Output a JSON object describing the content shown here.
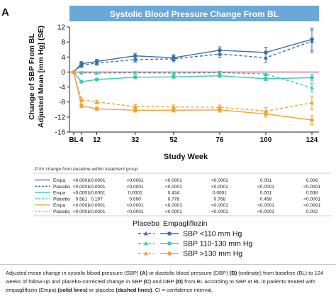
{
  "panel_label": "A",
  "chart_data": {
    "type": "line",
    "title": "Systolic Blood Pressure Change From BL",
    "xlabel": "Study Week",
    "ylabel_line1": "Change of SBP From BL",
    "ylabel_line2": "Adjusted Mean [mm Hg] (SE)",
    "categories": [
      "BL",
      "4",
      "12",
      "32",
      "52",
      "76",
      "100",
      "124"
    ],
    "x": [
      0,
      4,
      12,
      32,
      52,
      76,
      100,
      124
    ],
    "ylim": [
      -16,
      12
    ],
    "yticks": [
      12,
      8,
      4,
      0,
      -4,
      -8,
      -12,
      -16
    ],
    "grid": false,
    "reference_line_y": 0,
    "series": [
      {
        "group": "SBP <110 mm Hg",
        "arm": "Empa",
        "color": "#3a6ea8",
        "dashed": false,
        "y": [
          0,
          2.2,
          2.8,
          4.3,
          3.8,
          5.8,
          5.2,
          8.7
        ],
        "se": [
          0,
          0.6,
          0.6,
          0.7,
          0.8,
          0.9,
          1.4,
          3.0
        ]
      },
      {
        "group": "SBP <110 mm Hg",
        "arm": "Placebo",
        "color": "#3a6ea8",
        "dashed": true,
        "y": [
          0,
          1.8,
          2.4,
          3.3,
          3.5,
          4.8,
          3.8,
          8.2
        ],
        "se": [
          0,
          0.6,
          0.6,
          0.7,
          0.8,
          1.0,
          1.2,
          3.0
        ]
      },
      {
        "group": "SBP 110-130 mm Hg",
        "arm": "Empa",
        "color": "#3cc9b0",
        "dashed": false,
        "y": [
          0,
          -2.6,
          -2.0,
          -1.4,
          -1.3,
          -1.0,
          -1.8,
          -1.5
        ],
        "se": [
          0,
          0.3,
          0.3,
          0.3,
          0.3,
          0.4,
          0.5,
          0.9
        ]
      },
      {
        "group": "SBP 110-130 mm Hg",
        "arm": "Placebo",
        "color": "#3cc9b0",
        "dashed": true,
        "y": [
          0,
          -0.2,
          -0.3,
          -0.2,
          -0.3,
          -0.2,
          -0.5,
          -4.2
        ],
        "se": [
          0,
          0.3,
          0.3,
          0.3,
          0.3,
          0.4,
          0.5,
          1.2
        ]
      },
      {
        "group": "SBP >130 mm Hg",
        "arm": "Empa",
        "color": "#f3a234",
        "dashed": false,
        "y": [
          0,
          -9.0,
          -9.8,
          -10.2,
          -10.2,
          -10.1,
          -11.2,
          -12.8
        ],
        "se": [
          0,
          0.5,
          0.5,
          0.5,
          0.5,
          0.6,
          0.8,
          1.2
        ]
      },
      {
        "group": "SBP >130 mm Hg",
        "arm": "Placebo",
        "color": "#f3a234",
        "dashed": true,
        "y": [
          0,
          -7.4,
          -8.0,
          -9.2,
          -9.3,
          -9.4,
          -10.4,
          -8.2
        ],
        "se": [
          0,
          0.5,
          0.5,
          0.5,
          0.5,
          0.6,
          0.9,
          1.8
        ]
      }
    ]
  },
  "pvalue_table": {
    "title": "P for change from baseline within treatment group",
    "rows": [
      {
        "arm": "Empa",
        "color": "#3a6ea8",
        "dashed": false,
        "values": [
          "<0.0001",
          "<0.0001",
          "<0.0001",
          "<0.0001",
          "<0.0001",
          "0.001",
          "0.006"
        ]
      },
      {
        "arm": "Placebo",
        "color": "#3a6ea8",
        "dashed": true,
        "values": [
          "<0.0001",
          "<0.0001",
          "<0.0001",
          "<0.0001",
          "<0.0001",
          "<0.0001",
          "<0.0001"
        ]
      },
      {
        "arm": "Empa",
        "color": "#3cc9b0",
        "dashed": false,
        "values": [
          "<0.0001",
          "<0.0001",
          "0.0001",
          "0.434",
          "0.0001",
          "0.001",
          "0.538"
        ]
      },
      {
        "arm": "Placebo",
        "color": "#3cc9b0",
        "dashed": true,
        "values": [
          "0.581",
          "0.197",
          "0.590",
          "0.778",
          "0.768",
          "0.458",
          "<0.0001"
        ]
      },
      {
        "arm": "Empa",
        "color": "#f3a234",
        "dashed": false,
        "values": [
          "<0.0001",
          "<0.0001",
          "<0.0001",
          "<0.0001",
          "<0.0001",
          "<0.0001",
          "<0.0001"
        ]
      },
      {
        "arm": "Placebo",
        "color": "#f3a234",
        "dashed": true,
        "values": [
          "<0.0001",
          "<0.0001",
          "<0.0001",
          "<0.0001",
          "<0.0001",
          "<0.0001",
          "0.002"
        ]
      }
    ]
  },
  "legend": {
    "header_placebo": "Placebo",
    "header_empa": "Empagliflozin",
    "items": [
      {
        "label": "SBP <110 mm Hg",
        "color": "#3a6ea8"
      },
      {
        "label": "SBP 110-130 mm Hg",
        "color": "#3cc9b0"
      },
      {
        "label": "SBP >130 mm Hg",
        "color": "#f3a234"
      }
    ]
  },
  "caption": {
    "p1": "Adjusted mean change in systolic blood pressure (SBP) ",
    "b1": "(A)",
    "p2": " or diastolic blood pressure (DBP) ",
    "b2": "(B)",
    "p3": " (ordinate) from baseline (BL) to 124 weeks of follow-up and placebo-corrected change in SBP ",
    "b3": "(C)",
    "p4": " and DBP ",
    "b4": "(D)",
    "p5": " from BL according to SBP at BL in patients treated with empagliflozin (Empa) ",
    "b5": "(solid lines)",
    "p6": " or placebo ",
    "b6": "(dashed lines)",
    "p7": ". CI = confidence interval."
  },
  "colors": {
    "title_bar": "#6aa8d8",
    "reference_line": "#e0304a",
    "axis": "#222222"
  }
}
